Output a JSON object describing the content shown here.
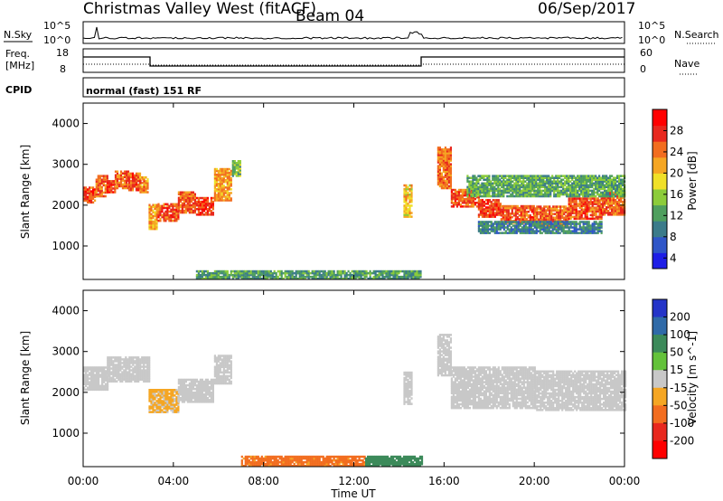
{
  "header": {
    "radar": "Christmas Valley West (fitACF)",
    "beam": "Beam 04",
    "date": "06/Sep/2017"
  },
  "strips": {
    "nsky_label": "N.Sky",
    "nsky_ticks": [
      "10^5",
      "10^0"
    ],
    "nsearch_label": "N.Search",
    "freq_label_1": "Freq.",
    "freq_label_2": "[MHz]",
    "freq_ticks": [
      "18",
      "8"
    ],
    "nave_label": "Nave",
    "nave_ticks": [
      "60",
      "0"
    ],
    "cpid_label": "CPID",
    "cpid_text": "normal (fast) 151 RF"
  },
  "chart_data": [
    {
      "type": "heatmap",
      "panel": "power",
      "ylabel": "Slant Range [km]",
      "y_ticks": [
        1000,
        2000,
        3000,
        4000
      ],
      "ylim": [
        180,
        4500
      ],
      "colorbar_label": "Power [dB]",
      "colorbar_ticks": [
        4,
        8,
        12,
        16,
        20,
        24,
        28
      ],
      "colorbar_colors": [
        "#1e1ee6",
        "#2f56c8",
        "#3b7b8a",
        "#4f9f5e",
        "#8ccc3a",
        "#f0e028",
        "#f5a623",
        "#f26d1f",
        "#e8281e",
        "#ff0000"
      ],
      "bands": [
        {
          "t": [
            0.0,
            0.55
          ],
          "r": [
            2050,
            2450
          ],
          "dB": 26
        },
        {
          "t": [
            0.55,
            1.05
          ],
          "r": [
            2200,
            2700
          ],
          "dB": 25
        },
        {
          "t": [
            1.05,
            1.4
          ],
          "r": [
            2300,
            2600
          ],
          "dB": 27
        },
        {
          "t": [
            1.4,
            2.0
          ],
          "r": [
            2400,
            2850
          ],
          "dB": 24
        },
        {
          "t": [
            2.0,
            2.5
          ],
          "r": [
            2350,
            2800
          ],
          "dB": 26
        },
        {
          "t": [
            2.5,
            2.9
          ],
          "r": [
            2300,
            2700
          ],
          "dB": 23
        },
        {
          "t": [
            2.9,
            3.3
          ],
          "r": [
            1400,
            2000
          ],
          "dB": 22
        },
        {
          "t": [
            3.3,
            4.2
          ],
          "r": [
            1600,
            2050
          ],
          "dB": 26
        },
        {
          "t": [
            4.2,
            5.0
          ],
          "r": [
            1800,
            2300
          ],
          "dB": 25
        },
        {
          "t": [
            5.0,
            5.8
          ],
          "r": [
            1750,
            2200
          ],
          "dB": 27
        },
        {
          "t": [
            5.8,
            6.6
          ],
          "r": [
            2100,
            2900
          ],
          "dB": 22
        },
        {
          "t": [
            6.6,
            7.0
          ],
          "r": [
            2700,
            3100
          ],
          "dB": 14
        },
        {
          "t": [
            14.2,
            14.6
          ],
          "r": [
            1700,
            2500
          ],
          "dB": 20
        },
        {
          "t": [
            15.7,
            16.3
          ],
          "r": [
            2400,
            3400
          ],
          "dB": 24
        },
        {
          "t": [
            16.3,
            17.5
          ],
          "r": [
            1950,
            2400
          ],
          "dB": 26
        },
        {
          "t": [
            17.5,
            18.5
          ],
          "r": [
            1700,
            2150
          ],
          "dB": 27
        },
        {
          "t": [
            18.5,
            20.0
          ],
          "r": [
            1550,
            2000
          ],
          "dB": 26
        },
        {
          "t": [
            20.0,
            21.5
          ],
          "r": [
            1450,
            1950
          ],
          "dB": 25
        },
        {
          "t": [
            21.5,
            23.0
          ],
          "r": [
            1650,
            2150
          ],
          "dB": 26
        },
        {
          "t": [
            23.0,
            24.0
          ],
          "r": [
            1750,
            2300
          ],
          "dB": 25
        },
        {
          "t": [
            17.0,
            24.0
          ],
          "r": [
            2200,
            2700
          ],
          "dB": 13
        },
        {
          "t": [
            17.5,
            23.0
          ],
          "r": [
            1300,
            1600
          ],
          "dB": 10
        },
        {
          "t": [
            5.0,
            15.0
          ],
          "r": [
            180,
            400
          ],
          "dB": 12
        }
      ]
    },
    {
      "type": "heatmap",
      "panel": "velocity",
      "ylabel": "Slant Range [km]",
      "xlabel": "Time UT",
      "x_ticks": [
        "00:00",
        "04:00",
        "08:00",
        "12:00",
        "16:00",
        "20:00",
        "00:00"
      ],
      "xlim": [
        0,
        24
      ],
      "y_ticks": [
        1000,
        2000,
        3000,
        4000
      ],
      "ylim": [
        180,
        4500
      ],
      "colorbar_label": "Velocity [m s^-1]",
      "colorbar_ticks": [
        200,
        100,
        50,
        15,
        -15,
        -50,
        -100,
        -200
      ],
      "colorbar_colors": [
        "#2434c8",
        "#2f6aa8",
        "#3c8a5a",
        "#63c23a",
        "#c8c8c8",
        "#f5a623",
        "#f26d1f",
        "#e8281e",
        "#ff0000"
      ],
      "bands": [
        {
          "t": [
            0.0,
            1.05
          ],
          "r": [
            2050,
            2600
          ],
          "v": 0
        },
        {
          "t": [
            1.05,
            2.9
          ],
          "r": [
            2250,
            2850
          ],
          "v": 0
        },
        {
          "t": [
            2.9,
            4.2
          ],
          "r": [
            1500,
            2050
          ],
          "v": -20
        },
        {
          "t": [
            4.2,
            5.8
          ],
          "r": [
            1750,
            2300
          ],
          "v": 0
        },
        {
          "t": [
            5.8,
            6.6
          ],
          "r": [
            2200,
            2900
          ],
          "v": 0
        },
        {
          "t": [
            14.2,
            14.6
          ],
          "r": [
            1700,
            2500
          ],
          "v": 0
        },
        {
          "t": [
            15.7,
            16.3
          ],
          "r": [
            2400,
            3400
          ],
          "v": 0
        },
        {
          "t": [
            16.3,
            20.0
          ],
          "r": [
            1600,
            2600
          ],
          "v": 0
        },
        {
          "t": [
            20.0,
            24.0
          ],
          "r": [
            1550,
            2500
          ],
          "v": 0
        },
        {
          "t": [
            7.0,
            12.5
          ],
          "r": [
            180,
            420
          ],
          "v": -40
        },
        {
          "t": [
            12.5,
            15.0
          ],
          "r": [
            180,
            420
          ],
          "v": 45
        }
      ]
    }
  ]
}
